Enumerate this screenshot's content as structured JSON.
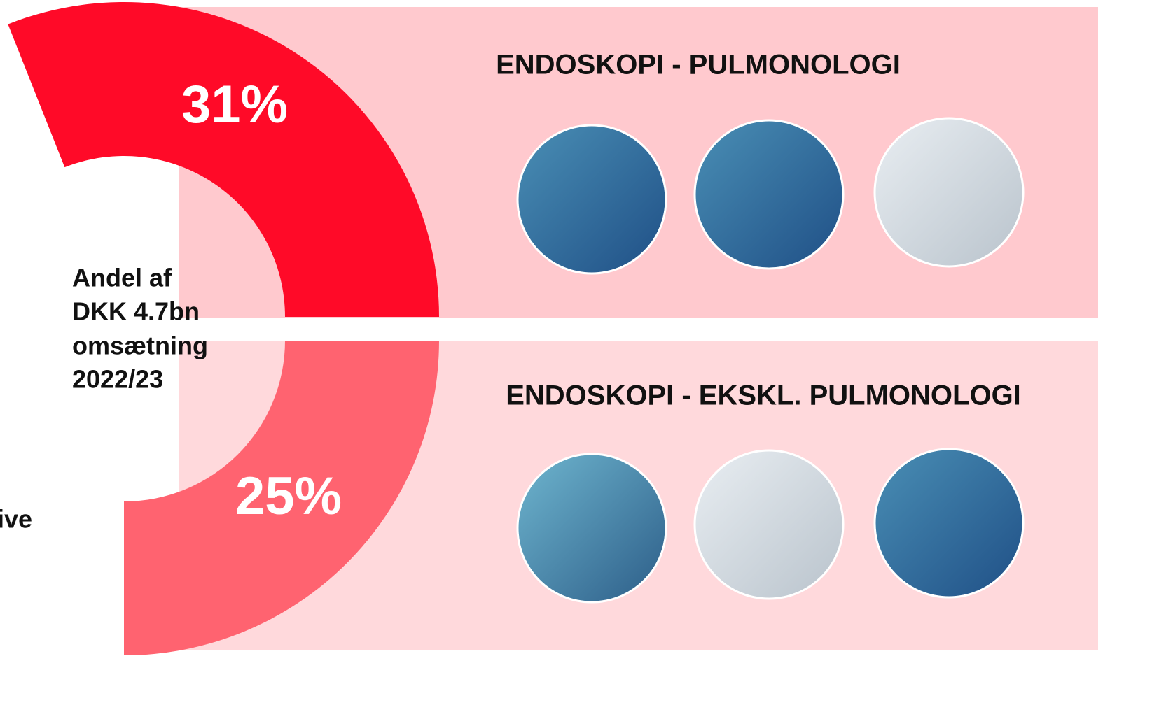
{
  "chart_data": {
    "type": "donut",
    "categories": [
      "ENDOSKOPI - PULMONOLOGI",
      "ENDOSKOPI - EKSKL. PULMONOLOGI"
    ],
    "values": [
      31,
      25
    ],
    "value_labels": [
      "31%",
      "25%"
    ],
    "colors": [
      "#ff0a28",
      "#ff6370"
    ],
    "center_text": [
      "Andel af",
      "DKK 4.7bn",
      "omsætning",
      "2022/23"
    ],
    "annotation": "ive"
  }
}
